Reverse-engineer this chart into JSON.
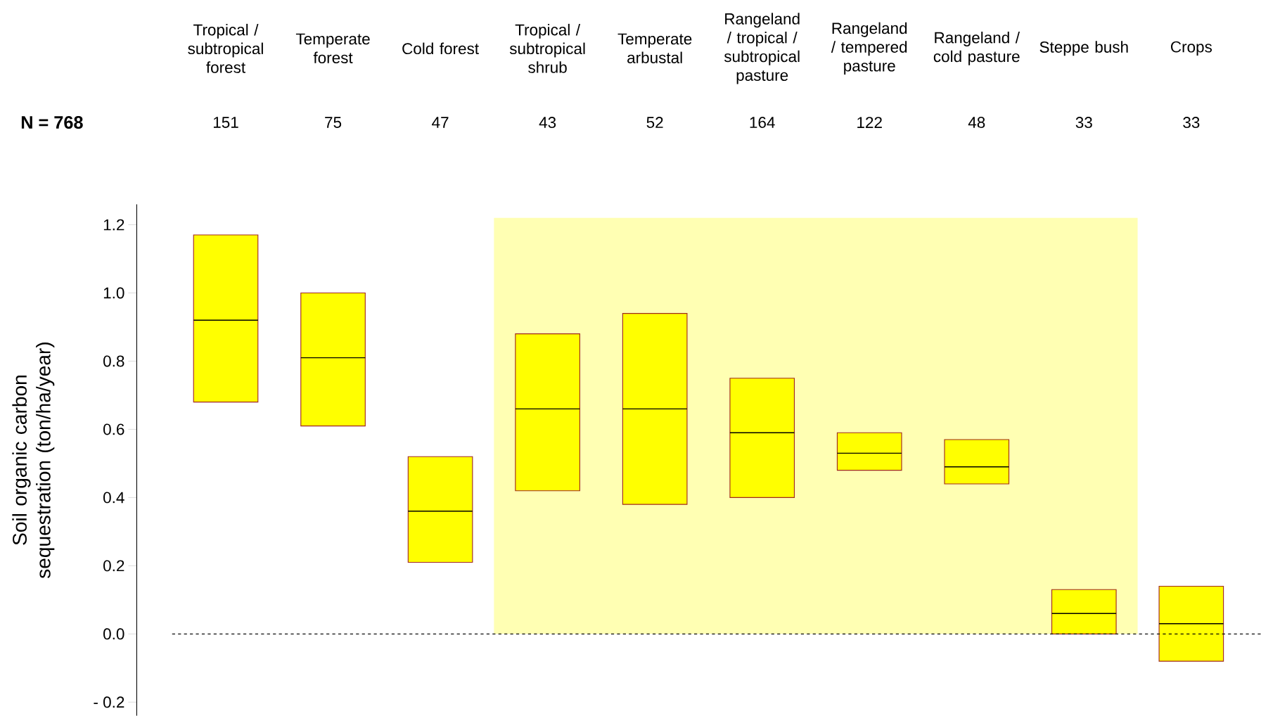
{
  "chart_data": {
    "type": "box",
    "ylabel": "Soil organic carbon sequestration (ton/ha/year)",
    "categories": [
      "Tropical / subtropical forest",
      "Temperate forest",
      "Cold forest",
      "Tropical / subtropical shrub",
      "Temperate arbustal",
      "Rangeland / tropical / subtropical pasture",
      "Rangeland / tempered pasture",
      "Rangeland / cold pasture",
      "Steppe bush",
      "Crops"
    ],
    "series": [
      {
        "color": "#ffff00",
        "boxes": [
          {
            "low": 0.68,
            "q1": 0.68,
            "median": 0.92,
            "q3": 1.17,
            "high": 1.17
          },
          {
            "low": 0.61,
            "q1": 0.61,
            "median": 0.81,
            "q3": 1.0,
            "high": 1.0
          },
          {
            "low": 0.21,
            "q1": 0.21,
            "median": 0.36,
            "q3": 0.52,
            "high": 0.52
          },
          {
            "low": 0.42,
            "q1": 0.42,
            "median": 0.66,
            "q3": 0.88,
            "high": 0.88
          },
          {
            "low": 0.38,
            "q1": 0.38,
            "median": 0.66,
            "q3": 0.94,
            "high": 0.94
          },
          {
            "low": 0.4,
            "q1": 0.4,
            "median": 0.59,
            "q3": 0.75,
            "high": 0.75
          },
          {
            "low": 0.48,
            "q1": 0.48,
            "median": 0.53,
            "q3": 0.59,
            "high": 0.59
          },
          {
            "low": 0.44,
            "q1": 0.44,
            "median": 0.49,
            "q3": 0.57,
            "high": 0.57
          },
          {
            "low": 0.0,
            "q1": 0.0,
            "median": 0.06,
            "q3": 0.13,
            "high": 0.13
          },
          {
            "low": -0.08,
            "q1": -0.08,
            "median": 0.03,
            "q3": 0.14,
            "high": 0.14
          }
        ]
      }
    ],
    "annotations": [
      "N = 768",
      "151",
      "75",
      "47",
      "43",
      "52",
      "164",
      "122",
      "48",
      "33",
      "33"
    ],
    "ylim": [
      -0.24,
      1.26
    ],
    "yticks": [
      {
        "value": -0.2,
        "label": "- 0.2"
      },
      {
        "value": 0.0,
        "label": "0.0"
      },
      {
        "value": 0.2,
        "label": "0.2"
      },
      {
        "value": 0.4,
        "label": "0.4"
      },
      {
        "value": 0.6,
        "label": "0.6"
      },
      {
        "value": 0.8,
        "label": "0.8"
      },
      {
        "value": 1.0,
        "label": "1.0"
      },
      {
        "value": 1.2,
        "label": "1.2"
      }
    ],
    "ref_lines": [
      {
        "axis": "y",
        "value": 0,
        "color": "#000000",
        "line_style": "dashed"
      }
    ],
    "bands": [
      {
        "axis": "x",
        "from": "Tropical / subtropical shrub",
        "to": "Steppe bush",
        "color": "#ffffb3"
      }
    ],
    "grid": false
  }
}
